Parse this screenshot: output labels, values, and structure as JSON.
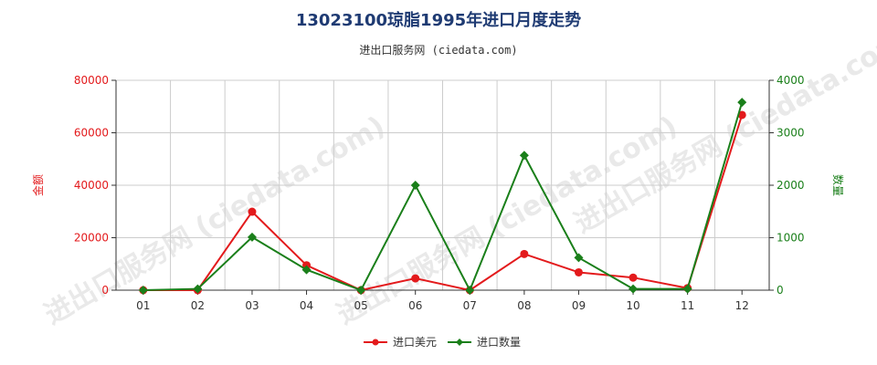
{
  "title": "13023100琼脂1995年进口月度走势",
  "subtitle": "进出口服务网 (ciedata.com)",
  "watermark": "进出口服务网 (ciedata.com)",
  "colors": {
    "value_series": "#e31a1c",
    "quantity_series": "#1a7f1a",
    "grid": "#cccccc",
    "axis": "#333333",
    "title": "#1f3b73"
  },
  "chart_data": {
    "type": "line",
    "categories": [
      "01",
      "02",
      "03",
      "04",
      "05",
      "06",
      "07",
      "08",
      "09",
      "10",
      "11",
      "12"
    ],
    "series": [
      {
        "name": "进口美元",
        "axis": "left",
        "values": [
          0,
          0,
          29900,
          9500,
          0,
          4500,
          0,
          13800,
          6800,
          4800,
          800,
          66800
        ]
      },
      {
        "name": "进口数量",
        "axis": "right",
        "values": [
          0,
          25,
          1010,
          390,
          0,
          2000,
          0,
          2570,
          620,
          25,
          25,
          3580
        ]
      }
    ],
    "ylabel_left": "金额",
    "ylabel_right": "数量",
    "ylim_left": [
      0,
      80000
    ],
    "ylim_right": [
      0,
      4000
    ],
    "yticks_left": [
      "0",
      "20000",
      "40000",
      "60000",
      "80000"
    ],
    "yticks_right": [
      "0",
      "1000",
      "2000",
      "3000",
      "4000"
    ],
    "grid": true,
    "legend_position": "bottom-center"
  }
}
